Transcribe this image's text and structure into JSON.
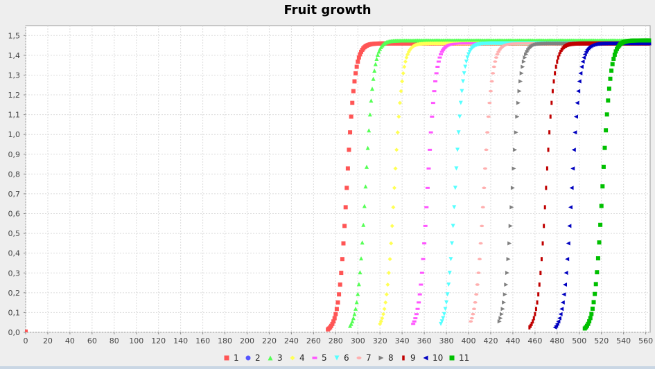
{
  "chart_data": {
    "type": "scatter",
    "title": "Fruit growth",
    "xlabel": "",
    "ylabel": "",
    "xlim": [
      0,
      564
    ],
    "ylim": [
      0,
      1.55
    ],
    "x_ticks": [
      0,
      20,
      40,
      60,
      80,
      100,
      120,
      140,
      160,
      180,
      200,
      220,
      240,
      260,
      280,
      300,
      320,
      340,
      360,
      380,
      400,
      420,
      440,
      460,
      480,
      500,
      520,
      540,
      560
    ],
    "y_ticks": [
      "0,0",
      "0,1",
      "0,2",
      "0,3",
      "0,4",
      "0,5",
      "0,6",
      "0,7",
      "0,8",
      "0,9",
      "1,0",
      "1,1",
      "1,2",
      "1,3",
      "1,4",
      "1,5"
    ],
    "y_tick_values": [
      0,
      0.1,
      0.2,
      0.3,
      0.4,
      0.5,
      0.6,
      0.7,
      0.8,
      0.9,
      1.0,
      1.1,
      1.2,
      1.3,
      1.4,
      1.5
    ],
    "grid": true,
    "legend_position": "bottom",
    "series": [
      {
        "name": "1",
        "color": "#ff5555",
        "marker": "square",
        "start": 0,
        "onset": 273,
        "midpoint": 290,
        "max": 1.46
      },
      {
        "name": "2",
        "color": "#5555ff",
        "marker": "circle",
        "start": 0,
        "onset": null,
        "midpoint": null,
        "max": 0
      },
      {
        "name": "3",
        "color": "#55ff55",
        "marker": "triangle-up",
        "start": 0,
        "onset": 293,
        "midpoint": 307,
        "max": 1.475
      },
      {
        "name": "4",
        "color": "#ffff55",
        "marker": "diamond",
        "start": 0,
        "onset": 320,
        "midpoint": 333,
        "max": 1.46
      },
      {
        "name": "5",
        "color": "#ff55ff",
        "marker": "hbar",
        "start": 0,
        "onset": 350,
        "midpoint": 363,
        "max": 1.46
      },
      {
        "name": "6",
        "color": "#55ffff",
        "marker": "triangle-down",
        "start": 0,
        "onset": 375,
        "midpoint": 388,
        "max": 1.46
      },
      {
        "name": "7",
        "color": "#ffafaf",
        "marker": "ellipse",
        "start": 0,
        "onset": 402,
        "midpoint": 414,
        "max": 1.46
      },
      {
        "name": "8",
        "color": "#808080",
        "marker": "triangle-right",
        "start": 0,
        "onset": 428,
        "midpoint": 440,
        "max": 1.46
      },
      {
        "name": "9",
        "color": "#c00000",
        "marker": "vbar",
        "start": 0,
        "onset": 455,
        "midpoint": 470,
        "max": 1.46
      },
      {
        "name": "10",
        "color": "#0000c0",
        "marker": "triangle-left",
        "start": 0,
        "onset": 478,
        "midpoint": 493,
        "max": 1.46
      },
      {
        "name": "11",
        "color": "#00c000",
        "marker": "square",
        "start": 0,
        "onset": 505,
        "midpoint": 521,
        "max": 1.475
      }
    ]
  }
}
